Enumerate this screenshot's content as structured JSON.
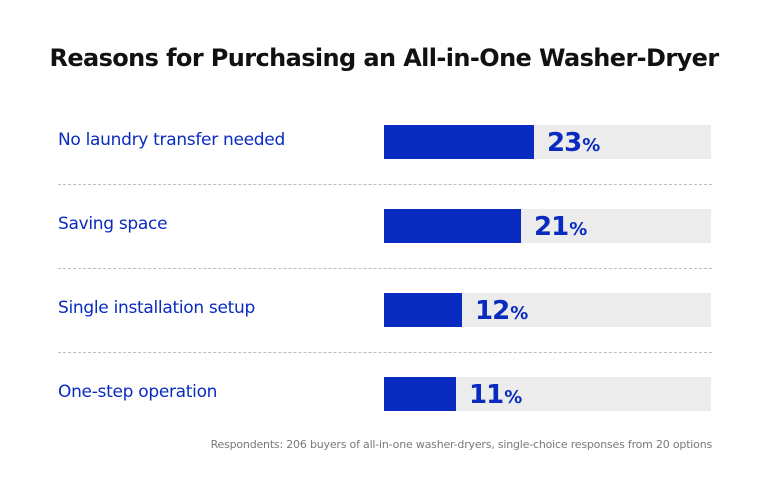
{
  "chart_data": {
    "type": "bar",
    "orientation": "horizontal",
    "title": "Reasons for Purchasing an All-in-One Washer-Dryer",
    "categories": [
      "No laundry transfer needed",
      "Saving space",
      "Single installation setup",
      "One-step operation"
    ],
    "values": [
      23,
      21,
      12,
      11
    ],
    "value_labels": [
      "23",
      "21",
      "12",
      "11"
    ],
    "unit": "%",
    "xlim": [
      0,
      50
    ],
    "grid": false,
    "legend": "none",
    "colors": {
      "bar": "#0a2bbf",
      "track": "#ececec",
      "label": "#0a2bbf"
    },
    "footnote": "Respondents: 206 buyers of all-in-one washer-dryers, single-choice responses from 20 options"
  }
}
